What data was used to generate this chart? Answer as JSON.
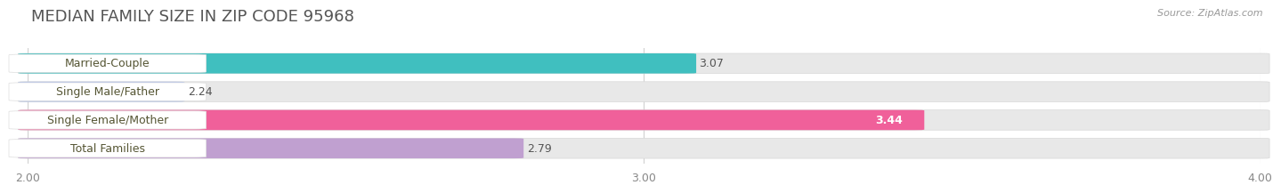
{
  "title": "MEDIAN FAMILY SIZE IN ZIP CODE 95968",
  "source": "Source: ZipAtlas.com",
  "categories": [
    "Married-Couple",
    "Single Male/Father",
    "Single Female/Mother",
    "Total Families"
  ],
  "values": [
    3.07,
    2.24,
    3.44,
    2.79
  ],
  "bar_colors": [
    "#40bfbf",
    "#aabde8",
    "#f0609a",
    "#c0a0d0"
  ],
  "label_colors": [
    "#555500",
    "#333355",
    "#333355",
    "#333355"
  ],
  "value_label_colors": [
    "#555555",
    "#555555",
    "#ffffff",
    "#555555"
  ],
  "xlim": [
    2.0,
    4.0
  ],
  "xticks": [
    2.0,
    3.0,
    4.0
  ],
  "xtick_labels": [
    "2.00",
    "3.00",
    "4.00"
  ],
  "background_color": "#ffffff",
  "bar_bg_color": "#e8e8e8",
  "title_color": "#555555",
  "title_fontsize": 13,
  "source_fontsize": 8,
  "tick_fontsize": 9,
  "label_fontsize": 9,
  "value_fontsize": 9
}
